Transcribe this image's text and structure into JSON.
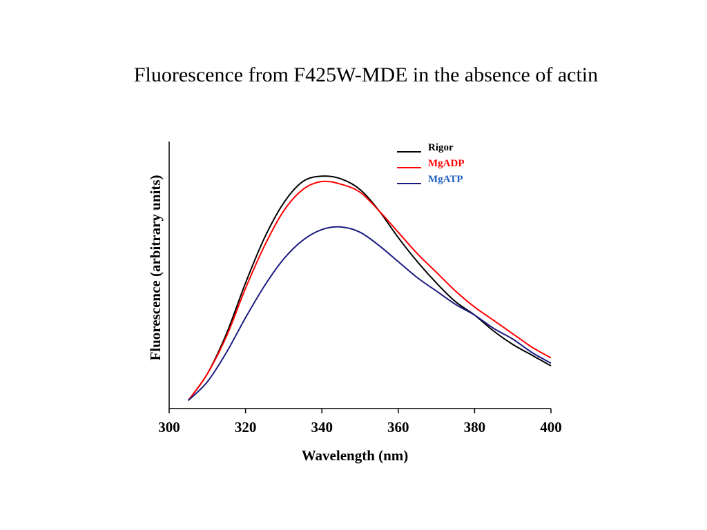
{
  "title": "Fluorescence from F425W-MDE in the absence of actin",
  "chart_data": {
    "type": "line",
    "xlabel": "Wavelength (nm)",
    "ylabel": "Fluorescence (arbitrary units)",
    "xlim": [
      300,
      400
    ],
    "ylim": [
      0,
      1.0
    ],
    "xticks": [
      300,
      320,
      340,
      360,
      380,
      400
    ],
    "grid": false,
    "legend": "top-right",
    "series": [
      {
        "name": "Rigor",
        "color": "#000000",
        "label_color": "#000000",
        "x": [
          305,
          310,
          315,
          320,
          325,
          330,
          335,
          340,
          345,
          350,
          355,
          360,
          365,
          370,
          375,
          380,
          385,
          390,
          395,
          400
        ],
        "y": [
          0.03,
          0.13,
          0.28,
          0.47,
          0.64,
          0.77,
          0.85,
          0.87,
          0.86,
          0.82,
          0.74,
          0.64,
          0.55,
          0.47,
          0.4,
          0.35,
          0.29,
          0.24,
          0.2,
          0.16
        ]
      },
      {
        "name": "MgADP",
        "color": "#ff0000",
        "label_color": "#ff0000",
        "x": [
          305,
          310,
          315,
          320,
          325,
          330,
          335,
          340,
          345,
          350,
          355,
          360,
          365,
          370,
          375,
          380,
          385,
          390,
          395,
          400
        ],
        "y": [
          0.03,
          0.13,
          0.27,
          0.45,
          0.61,
          0.74,
          0.82,
          0.85,
          0.84,
          0.81,
          0.74,
          0.66,
          0.58,
          0.51,
          0.44,
          0.38,
          0.33,
          0.28,
          0.23,
          0.19
        ]
      },
      {
        "name": "MgATP",
        "color": "#1a1a80",
        "label_color": "#1f5fbf",
        "x": [
          305,
          310,
          315,
          320,
          325,
          330,
          335,
          340,
          345,
          350,
          355,
          360,
          365,
          370,
          375,
          380,
          385,
          390,
          395,
          400
        ],
        "y": [
          0.03,
          0.1,
          0.21,
          0.34,
          0.46,
          0.56,
          0.63,
          0.67,
          0.68,
          0.66,
          0.61,
          0.55,
          0.49,
          0.44,
          0.39,
          0.35,
          0.3,
          0.26,
          0.21,
          0.17
        ]
      }
    ]
  }
}
